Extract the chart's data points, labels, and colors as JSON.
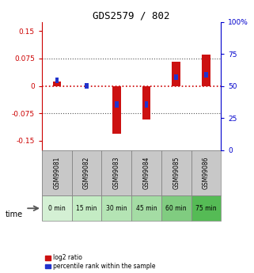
{
  "title": "GDS2579 / 802",
  "samples": [
    "GSM99081",
    "GSM99082",
    "GSM99083",
    "GSM99084",
    "GSM99085",
    "GSM99086"
  ],
  "time_labels": [
    "0 min",
    "15 min",
    "30 min",
    "45 min",
    "60 min",
    "75 min"
  ],
  "time_colors": [
    "#d4f0d4",
    "#c4ecc4",
    "#b4e4b4",
    "#a4dca4",
    "#80cc80",
    "#55bb55"
  ],
  "log2_vals": [
    0.013,
    0.0,
    -0.13,
    -0.092,
    0.065,
    0.085
  ],
  "pct_vals": [
    55,
    50,
    33,
    33,
    58,
    60
  ],
  "left_yticks": [
    -0.15,
    -0.075,
    0.0,
    0.075,
    0.15
  ],
  "left_yticklabels": [
    "-0.15",
    "-0.075",
    "0",
    "0.075",
    "0.15"
  ],
  "right_yticks": [
    0,
    25,
    50,
    75,
    100
  ],
  "right_yticklabels": [
    "0",
    "25",
    "50",
    "75",
    "100%"
  ],
  "ylim": [
    -0.175,
    0.175
  ],
  "left_color": "#cc0000",
  "right_color": "#0000cc",
  "bar_color_red": "#cc1111",
  "bar_color_blue": "#2233cc",
  "hline_color": "#cc0000",
  "grid_color": "#555555",
  "sample_bg_color": "#c8c8c8",
  "legend_label_red": "log2 ratio",
  "legend_label_blue": "percentile rank within the sample"
}
